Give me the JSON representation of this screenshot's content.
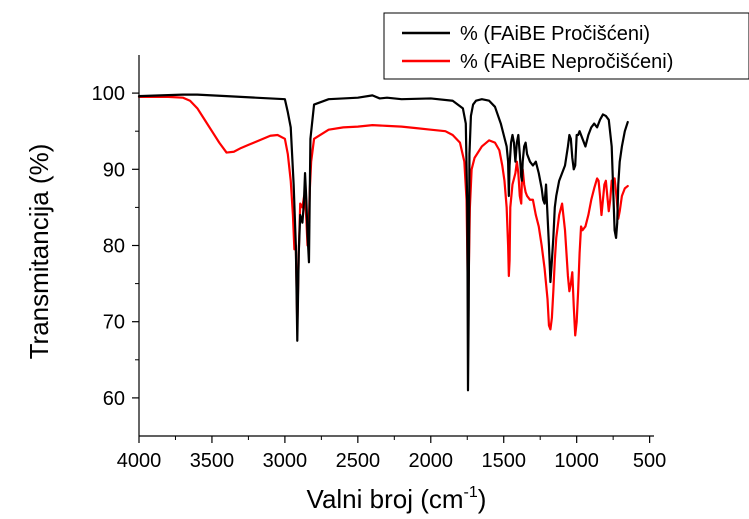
{
  "chart_data": {
    "type": "line",
    "title": "",
    "xlabel": "Valni broj (cm",
    "xlabel_sup": "-1",
    "xlabel_close": ")",
    "ylabel": "Transmitancija (%)",
    "xlim": [
      4000,
      400
    ],
    "ylim": [
      55,
      105
    ],
    "x_reversed": true,
    "grid": false,
    "legend_position": "top-right",
    "xticks": [
      4000,
      3500,
      3000,
      2500,
      2000,
      1500,
      1000,
      500
    ],
    "xtick_labels": [
      "4000",
      "3500",
      "3000",
      "2500",
      "2000",
      "1500",
      "1000",
      "500"
    ],
    "yticks": [
      60,
      70,
      80,
      90,
      100
    ],
    "ytick_labels": [
      "60",
      "70",
      "80",
      "90",
      "100"
    ],
    "series": [
      {
        "name": "% (FAiBE Pročišćeni)",
        "color": "#000000",
        "x": [
          4000,
          3700,
          3600,
          3400,
          3200,
          3000,
          2980,
          2960,
          2940,
          2925,
          2915,
          2905,
          2895,
          2880,
          2870,
          2862,
          2853,
          2845,
          2835,
          2825,
          2800,
          2700,
          2500,
          2400,
          2350,
          2300,
          2200,
          2000,
          1850,
          1780,
          1760,
          1750,
          1745,
          1740,
          1735,
          1725,
          1710,
          1690,
          1650,
          1600,
          1560,
          1520,
          1500,
          1480,
          1470,
          1465,
          1460,
          1450,
          1440,
          1430,
          1420,
          1410,
          1400,
          1390,
          1380,
          1375,
          1370,
          1360,
          1350,
          1340,
          1320,
          1300,
          1280,
          1260,
          1240,
          1230,
          1220,
          1210,
          1200,
          1190,
          1180,
          1170,
          1160,
          1150,
          1140,
          1120,
          1100,
          1080,
          1060,
          1050,
          1040,
          1030,
          1020,
          1010,
          1000,
          990,
          980,
          960,
          940,
          920,
          900,
          880,
          860,
          840,
          820,
          800,
          780,
          760,
          740,
          730,
          722,
          715,
          705,
          690,
          670,
          650
        ],
        "y": [
          99.6,
          99.8,
          99.8,
          99.6,
          99.4,
          99.2,
          97.5,
          95.5,
          88.0,
          80.0,
          67.5,
          79.0,
          84.0,
          83.0,
          85.5,
          89.5,
          86.0,
          81.5,
          77.8,
          94.0,
          98.5,
          99.2,
          99.4,
          99.7,
          99.3,
          99.4,
          99.2,
          99.3,
          99.0,
          98.0,
          96.0,
          85.0,
          61.0,
          72.0,
          92.0,
          97.0,
          98.5,
          99.0,
          99.2,
          99.0,
          98.2,
          96.0,
          94.5,
          93.0,
          91.0,
          86.5,
          90.5,
          93.5,
          94.5,
          93.5,
          91.0,
          93.5,
          94.5,
          92.0,
          89.0,
          88.5,
          91.0,
          93.0,
          93.5,
          92.0,
          91.0,
          90.5,
          91.0,
          89.5,
          87.5,
          86.0,
          85.5,
          88.0,
          84.0,
          80.0,
          75.2,
          78.0,
          81.0,
          85.0,
          86.5,
          88.5,
          89.5,
          90.5,
          93.0,
          94.5,
          94.0,
          91.5,
          90.0,
          90.5,
          94.5,
          94.5,
          95.0,
          94.0,
          93.0,
          94.5,
          95.5,
          96.0,
          95.5,
          96.5,
          97.2,
          97.0,
          96.5,
          93.0,
          82.0,
          81.0,
          83.0,
          88.0,
          91.0,
          93.0,
          95.0,
          96.2
        ]
      },
      {
        "name": "% (FAiBE Nepročišćeni)",
        "color": "#ff0000",
        "x": [
          4000,
          3800,
          3700,
          3650,
          3600,
          3550,
          3500,
          3450,
          3400,
          3350,
          3300,
          3250,
          3200,
          3100,
          3050,
          3000,
          2980,
          2960,
          2945,
          2935,
          2925,
          2915,
          2905,
          2895,
          2880,
          2868,
          2860,
          2853,
          2845,
          2838,
          2830,
          2820,
          2800,
          2700,
          2600,
          2500,
          2400,
          2300,
          2200,
          2100,
          2000,
          1900,
          1850,
          1800,
          1770,
          1755,
          1745,
          1740,
          1732,
          1720,
          1700,
          1650,
          1600,
          1560,
          1530,
          1510,
          1495,
          1480,
          1470,
          1465,
          1460,
          1455,
          1440,
          1420,
          1410,
          1400,
          1390,
          1380,
          1375,
          1370,
          1360,
          1350,
          1340,
          1320,
          1300,
          1280,
          1260,
          1240,
          1220,
          1200,
          1190,
          1180,
          1170,
          1160,
          1150,
          1140,
          1120,
          1100,
          1080,
          1060,
          1050,
          1040,
          1030,
          1020,
          1010,
          1000,
          990,
          980,
          970,
          960,
          940,
          920,
          900,
          880,
          860,
          850,
          840,
          830,
          820,
          810,
          800,
          790,
          780,
          770,
          760,
          740,
          725,
          715,
          705,
          690,
          670,
          650
        ],
        "y": [
          99.5,
          99.5,
          99.4,
          99.0,
          98.0,
          96.5,
          95.0,
          93.5,
          92.2,
          92.3,
          92.8,
          93.2,
          93.6,
          94.4,
          94.5,
          94.0,
          92.0,
          88.5,
          84.0,
          79.5,
          80.0,
          69.5,
          79.0,
          85.5,
          85.0,
          86.5,
          85.5,
          83.5,
          80.0,
          81.5,
          87.0,
          91.0,
          94.0,
          95.2,
          95.5,
          95.6,
          95.8,
          95.7,
          95.6,
          95.4,
          95.2,
          95.0,
          94.5,
          93.5,
          91.0,
          86.0,
          73.0,
          76.0,
          85.0,
          90.0,
          91.5,
          93.0,
          93.8,
          93.5,
          92.5,
          90.5,
          88.5,
          85.0,
          80.0,
          76.0,
          78.0,
          85.0,
          88.0,
          89.5,
          91.0,
          89.5,
          86.5,
          85.5,
          89.0,
          90.0,
          88.0,
          87.0,
          86.5,
          86.0,
          86.0,
          84.0,
          82.5,
          80.0,
          77.0,
          73.0,
          69.5,
          69.0,
          70.5,
          74.0,
          78.0,
          81.0,
          84.0,
          85.5,
          82.0,
          76.0,
          74.0,
          75.0,
          76.5,
          72.0,
          68.2,
          70.0,
          74.0,
          79.0,
          82.5,
          82.0,
          82.5,
          84.0,
          86.0,
          87.5,
          88.8,
          88.5,
          86.5,
          84.0,
          86.0,
          88.0,
          88.5,
          86.5,
          84.5,
          86.0,
          88.5,
          88.8,
          86.0,
          83.5,
          84.5,
          86.5,
          87.5,
          87.8
        ]
      }
    ]
  }
}
